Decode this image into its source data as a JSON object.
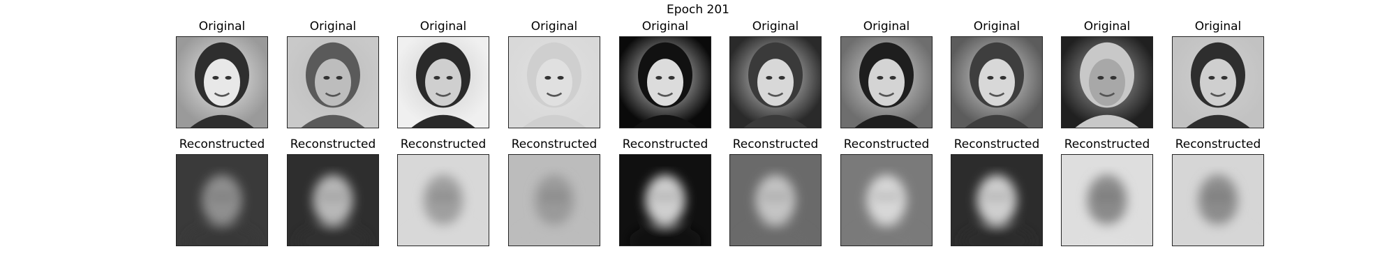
{
  "figure": {
    "title": "Epoch 201"
  },
  "columns": [
    {
      "original_label": "Original",
      "reconstructed_label": "Reconstructed",
      "original_bg": "#9a9a9a",
      "original_face": "#e8e8e8",
      "original_hair": "#2e2e2e",
      "recon_bg": "#3a3a3a",
      "recon_face": "#8f8f8f"
    },
    {
      "original_label": "Original",
      "reconstructed_label": "Reconstructed",
      "original_bg": "#c9c9c9",
      "original_face": "#bdbdbd",
      "original_hair": "#5a5a5a",
      "recon_bg": "#2e2e2e",
      "recon_face": "#b8b8b8"
    },
    {
      "original_label": "Original",
      "reconstructed_label": "Reconstructed",
      "original_bg": "#f0f0f0",
      "original_face": "#cfcfcf",
      "original_hair": "#2a2a2a",
      "recon_bg": "#d8d8d8",
      "recon_face": "#9f9f9f"
    },
    {
      "original_label": "Original",
      "reconstructed_label": "Reconstructed",
      "original_bg": "#d9d9d9",
      "original_face": "#e0e0e0",
      "original_hair": "#cfcfcf",
      "recon_bg": "#bcbcbc",
      "recon_face": "#9a9a9a"
    },
    {
      "original_label": "Original",
      "reconstructed_label": "Reconstructed",
      "original_bg": "#0a0a0a",
      "original_face": "#dcdcdc",
      "original_hair": "#111111",
      "recon_bg": "#101010",
      "recon_face": "#cfcfcf"
    },
    {
      "original_label": "Original",
      "reconstructed_label": "Reconstructed",
      "original_bg": "#2a2a2a",
      "original_face": "#d8d8d8",
      "original_hair": "#3a3a3a",
      "recon_bg": "#6a6a6a",
      "recon_face": "#c4c4c4"
    },
    {
      "original_label": "Original",
      "reconstructed_label": "Reconstructed",
      "original_bg": "#6e6e6e",
      "original_face": "#d4d4d4",
      "original_hair": "#1e1e1e",
      "recon_bg": "#7a7a7a",
      "recon_face": "#d8d8d8"
    },
    {
      "original_label": "Original",
      "reconstructed_label": "Reconstructed",
      "original_bg": "#5c5c5c",
      "original_face": "#d8d8d8",
      "original_hair": "#3e3e3e",
      "recon_bg": "#2c2c2c",
      "recon_face": "#cfcfcf"
    },
    {
      "original_label": "Original",
      "reconstructed_label": "Reconstructed",
      "original_bg": "#202020",
      "original_face": "#a8a8a8",
      "original_hair": "#c8c8c8",
      "recon_bg": "#dedede",
      "recon_face": "#8a8a8a"
    },
    {
      "original_label": "Original",
      "reconstructed_label": "Reconstructed",
      "original_bg": "#c2c2c2",
      "original_face": "#cfcfcf",
      "original_hair": "#2e2e2e",
      "recon_bg": "#d6d6d6",
      "recon_face": "#8c8c8c"
    }
  ]
}
